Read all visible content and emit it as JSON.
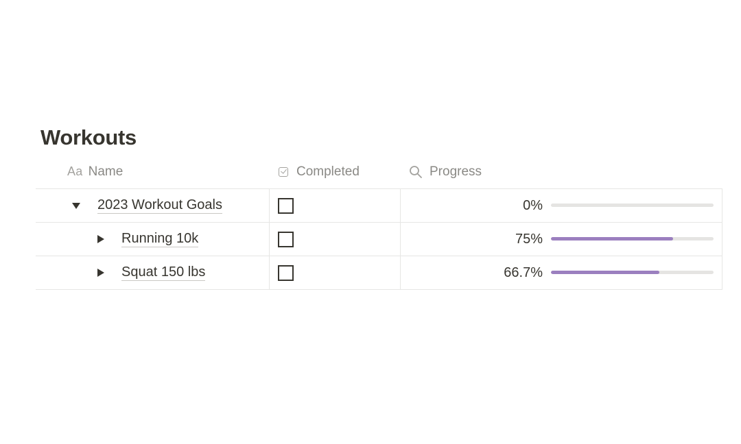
{
  "page": {
    "title": "Workouts"
  },
  "columns": {
    "name_icon": "Aa",
    "name": "Name",
    "completed": "Completed",
    "progress": "Progress"
  },
  "rows": [
    {
      "title": "2023 Workout Goals",
      "toggle": "expanded",
      "indent": 0,
      "completed": false,
      "progress_label": "0%",
      "progress": 0
    },
    {
      "title": "Running 10k",
      "toggle": "collapsed",
      "indent": 1,
      "completed": false,
      "progress_label": "75%",
      "progress": 0.75
    },
    {
      "title": "Squat 150 lbs",
      "toggle": "collapsed",
      "indent": 1,
      "completed": false,
      "progress_label": "66.7%",
      "progress": 0.667
    }
  ],
  "colors": {
    "progress_fill": "#9b7fbf",
    "progress_track": "#e5e4e2",
    "text": "#37352f",
    "header_text": "#8a8985"
  },
  "icons": {
    "expanded": "triangle-down-icon",
    "collapsed": "triangle-right-icon",
    "completed_header": "checkbox-icon",
    "progress_header": "search-icon"
  }
}
